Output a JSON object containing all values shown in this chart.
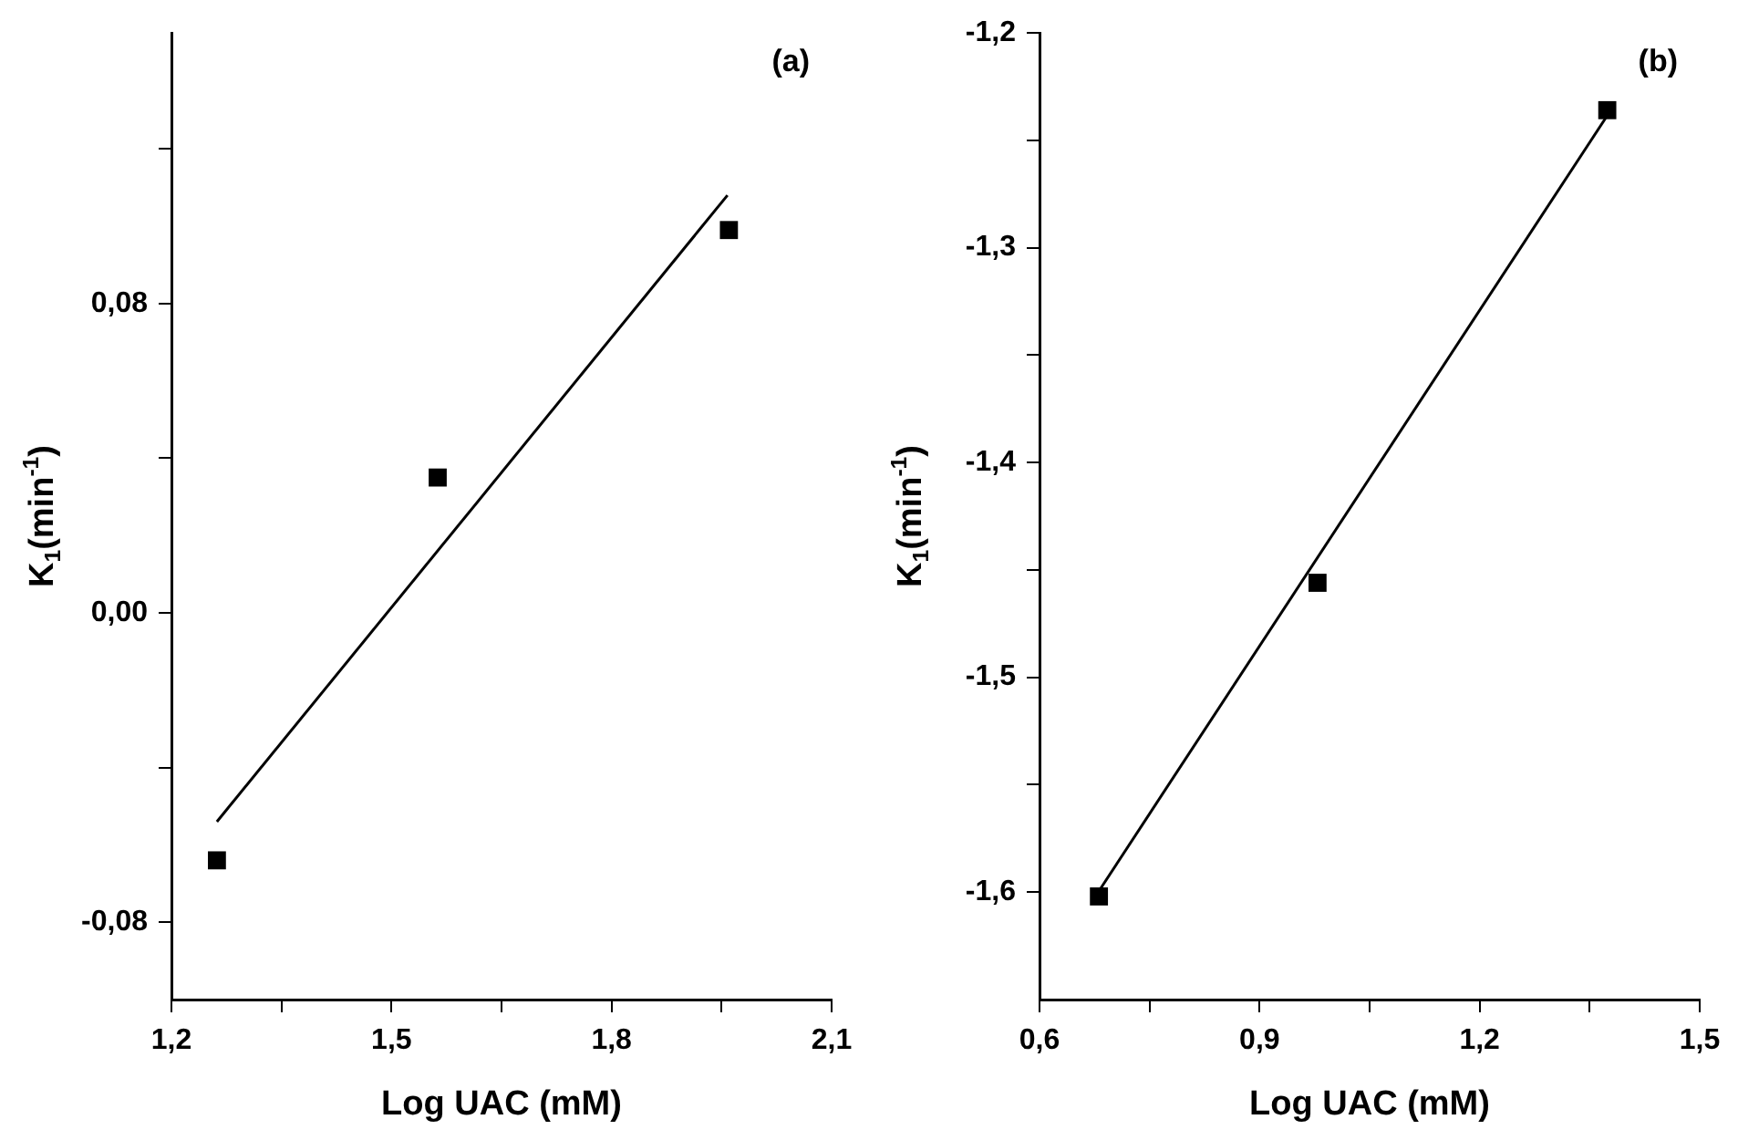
{
  "chart_data": [
    {
      "type": "scatter",
      "title": "(a)",
      "xlabel": "Log UAC (mM)",
      "ylabel": "K$_{1}$(min$^{-1}$)",
      "marker": "square",
      "grid": false,
      "legend": false,
      "xlim": [
        1.2,
        2.1
      ],
      "xticks": [
        {
          "value": 1.2,
          "label": "1,2"
        },
        {
          "value": 1.35,
          "label": null
        },
        {
          "value": 1.5,
          "label": "1,5"
        },
        {
          "value": 1.65,
          "label": null
        },
        {
          "value": 1.8,
          "label": "1,8"
        },
        {
          "value": 1.95,
          "label": null
        },
        {
          "value": 2.1,
          "label": "2,1"
        }
      ],
      "ylim": [
        -0.1,
        0.15
      ],
      "yticks": [
        {
          "value": -0.08,
          "label": "-0,08"
        },
        {
          "value": -0.04,
          "label": null
        },
        {
          "value": 0,
          "label": "0,00"
        },
        {
          "value": 0.04,
          "label": null
        },
        {
          "value": 0.08,
          "label": "0,08"
        },
        {
          "value": 0.12,
          "label": null
        }
      ],
      "series": [
        {
          "color": "#000000",
          "x": [
            1.262,
            1.563,
            1.96
          ],
          "values": [
            -0.064,
            0.035,
            0.099
          ]
        },
        {
          "type": "line",
          "marker": "none",
          "line_style": "solid",
          "color": "#000000",
          "x": [
            1.262,
            1.958
          ],
          "values": [
            -0.054,
            0.108
          ]
        }
      ]
    },
    {
      "type": "scatter",
      "title": "(b)",
      "xlabel": "Log UAC (mM)",
      "ylabel": "K$_{1}$(min$^{-1}$)",
      "marker": "square",
      "grid": false,
      "legend": false,
      "xlim": [
        0.6,
        1.5
      ],
      "xticks": [
        {
          "value": 0.6,
          "label": "0,6"
        },
        {
          "value": 0.75,
          "label": null
        },
        {
          "value": 0.9,
          "label": "0,9"
        },
        {
          "value": 1.05,
          "label": null
        },
        {
          "value": 1.2,
          "label": "1,2"
        },
        {
          "value": 1.35,
          "label": null
        },
        {
          "value": 1.5,
          "label": "1,5"
        }
      ],
      "ylim": [
        -1.65,
        -1.2
      ],
      "yticks": [
        {
          "value": -1.6,
          "label": "-1,6"
        },
        {
          "value": -1.55,
          "label": null
        },
        {
          "value": -1.5,
          "label": "-1,5"
        },
        {
          "value": -1.45,
          "label": null
        },
        {
          "value": -1.4,
          "label": "-1,4"
        },
        {
          "value": -1.35,
          "label": null
        },
        {
          "value": -1.3,
          "label": "-1,3"
        },
        {
          "value": -1.25,
          "label": null
        },
        {
          "value": -1.2,
          "label": "-1,2"
        }
      ],
      "series": [
        {
          "color": "#000000",
          "x": [
            0.681,
            0.979,
            1.374
          ],
          "values": [
            -1.602,
            -1.456,
            -1.236
          ]
        },
        {
          "type": "line",
          "marker": "none",
          "line_style": "solid",
          "color": "#000000",
          "x": [
            0.68,
            1.375
          ],
          "values": [
            -1.6,
            -1.238
          ]
        }
      ]
    }
  ]
}
